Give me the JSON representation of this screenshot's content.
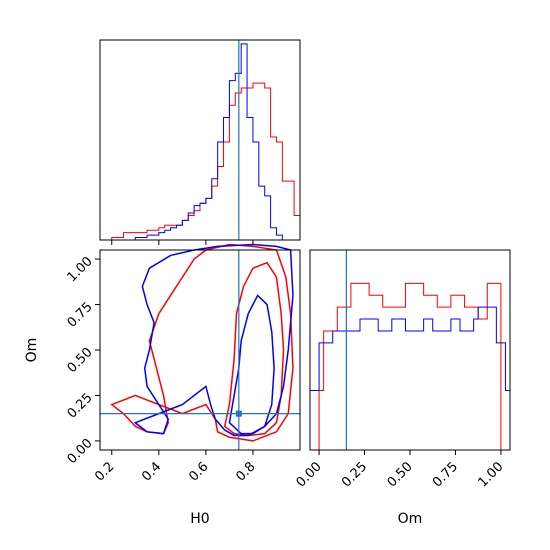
{
  "colors": {
    "red_series": "#ff0000",
    "blue_series": "#0000ff",
    "truth_line": "#1f77b4"
  },
  "chart_data": {
    "type": "corner",
    "parameters": [
      "H0",
      "Om"
    ],
    "truth": {
      "H0": 0.74,
      "Om": 0.15
    },
    "ticks": {
      "H0": [
        "0.2",
        "0.4",
        "0.6",
        "0.8"
      ],
      "Om": [
        "0.00",
        "0.25",
        "0.50",
        "0.75",
        "1.00"
      ]
    },
    "axis_labels": {
      "x_bottom_left": "H0",
      "x_bottom_right": "Om",
      "y_left": "Om"
    },
    "histograms": {
      "H0": {
        "range": [
          0.15,
          1.0
        ],
        "bin_edges": [
          0.2,
          0.25,
          0.3,
          0.35,
          0.4,
          0.425,
          0.45,
          0.475,
          0.5,
          0.525,
          0.55,
          0.575,
          0.6,
          0.625,
          0.65,
          0.675,
          0.7,
          0.725,
          0.75,
          0.775,
          0.8,
          0.825,
          0.85,
          0.875,
          0.9,
          0.925,
          0.95,
          0.975,
          1.0
        ],
        "red": [
          1,
          3,
          3,
          4,
          5,
          6,
          6,
          6,
          8,
          10,
          12,
          15,
          17,
          22,
          30,
          40,
          55,
          60,
          62,
          62,
          64,
          64,
          62,
          42,
          40,
          24,
          24,
          10
        ],
        "blue": [
          0,
          0,
          1,
          2,
          3,
          4,
          5,
          6,
          8,
          11,
          14,
          15,
          17,
          25,
          40,
          50,
          65,
          68,
          80,
          50,
          40,
          22,
          18,
          5,
          2,
          0,
          0,
          0
        ]
      },
      "Om": {
        "range": [
          -0.05,
          1.05
        ],
        "bin_edges": [
          -0.05,
          0.0,
          0.025,
          0.05,
          0.075,
          0.1,
          0.125,
          0.15,
          0.175,
          0.2,
          0.225,
          0.25,
          0.275,
          0.3,
          0.325,
          0.35,
          0.375,
          0.4,
          0.425,
          0.45,
          0.475,
          0.5,
          0.525,
          0.55,
          0.575,
          0.6,
          0.625,
          0.65,
          0.675,
          0.7,
          0.725,
          0.75,
          0.775,
          0.8,
          0.825,
          0.85,
          0.875,
          0.9,
          0.925,
          0.95,
          0.975,
          1.0,
          1.025,
          1.05
        ],
        "red": [
          0,
          5,
          10,
          10,
          10,
          12,
          12,
          12,
          14,
          14,
          14,
          14,
          13,
          13,
          13,
          12,
          12,
          12,
          12,
          12,
          14,
          14,
          14,
          14,
          13,
          13,
          13,
          12,
          12,
          12,
          13,
          13,
          13,
          12,
          12,
          12,
          11,
          11,
          14,
          14,
          14,
          0,
          0
        ],
        "blue": [
          5,
          9,
          9,
          9,
          10,
          10,
          10,
          10,
          10,
          10,
          11,
          11,
          11,
          11,
          10,
          10,
          10,
          11,
          11,
          11,
          10,
          10,
          10,
          10,
          11,
          11,
          10,
          10,
          10,
          10,
          11,
          11,
          10,
          10,
          10,
          11,
          12,
          12,
          12,
          12,
          9,
          9,
          5
        ]
      }
    },
    "contours": {
      "red": [
        [
          [
            0.2,
            0.2
          ],
          [
            0.25,
            0.15
          ],
          [
            0.3,
            0.08
          ],
          [
            0.35,
            0.05
          ],
          [
            0.42,
            0.04
          ],
          [
            0.44,
            0.1
          ],
          [
            0.42,
            0.25
          ],
          [
            0.4,
            0.35
          ],
          [
            0.38,
            0.45
          ],
          [
            0.36,
            0.55
          ],
          [
            0.4,
            0.7
          ],
          [
            0.45,
            0.8
          ],
          [
            0.5,
            0.9
          ],
          [
            0.55,
            1.0
          ],
          [
            0.6,
            1.05
          ],
          [
            0.7,
            1.08
          ],
          [
            0.8,
            1.07
          ],
          [
            0.9,
            1.05
          ],
          [
            0.94,
            0.9
          ],
          [
            0.96,
            0.7
          ],
          [
            0.97,
            0.4
          ],
          [
            0.95,
            0.15
          ],
          [
            0.9,
            0.05
          ],
          [
            0.8,
            0.0
          ],
          [
            0.7,
            0.02
          ],
          [
            0.65,
            0.05
          ],
          [
            0.64,
            0.12
          ],
          [
            0.6,
            0.2
          ],
          [
            0.5,
            0.15
          ],
          [
            0.4,
            0.2
          ],
          [
            0.3,
            0.25
          ],
          [
            0.2,
            0.2
          ]
        ],
        [
          [
            0.68,
            0.08
          ],
          [
            0.7,
            0.2
          ],
          [
            0.72,
            0.45
          ],
          [
            0.73,
            0.7
          ],
          [
            0.76,
            0.85
          ],
          [
            0.8,
            0.95
          ],
          [
            0.86,
            0.98
          ],
          [
            0.9,
            0.9
          ],
          [
            0.92,
            0.7
          ],
          [
            0.93,
            0.5
          ],
          [
            0.92,
            0.25
          ],
          [
            0.9,
            0.1
          ],
          [
            0.85,
            0.04
          ],
          [
            0.78,
            0.03
          ],
          [
            0.72,
            0.04
          ],
          [
            0.68,
            0.08
          ]
        ]
      ],
      "blue": [
        [
          [
            0.3,
            0.1
          ],
          [
            0.35,
            0.05
          ],
          [
            0.42,
            0.04
          ],
          [
            0.44,
            0.12
          ],
          [
            0.4,
            0.2
          ],
          [
            0.35,
            0.3
          ],
          [
            0.34,
            0.4
          ],
          [
            0.36,
            0.5
          ],
          [
            0.38,
            0.65
          ],
          [
            0.35,
            0.75
          ],
          [
            0.33,
            0.85
          ],
          [
            0.36,
            0.95
          ],
          [
            0.45,
            1.02
          ],
          [
            0.55,
            1.05
          ],
          [
            0.65,
            1.07
          ],
          [
            0.8,
            1.08
          ],
          [
            0.9,
            1.07
          ],
          [
            0.96,
            1.05
          ],
          [
            0.97,
            0.8
          ],
          [
            0.95,
            0.5
          ],
          [
            0.93,
            0.3
          ],
          [
            0.9,
            0.15
          ],
          [
            0.85,
            0.08
          ],
          [
            0.78,
            0.03
          ],
          [
            0.72,
            0.03
          ],
          [
            0.68,
            0.06
          ],
          [
            0.64,
            0.12
          ],
          [
            0.62,
            0.2
          ],
          [
            0.6,
            0.3
          ],
          [
            0.5,
            0.2
          ],
          [
            0.4,
            0.15
          ],
          [
            0.3,
            0.1
          ]
        ],
        [
          [
            0.7,
            0.1
          ],
          [
            0.72,
            0.25
          ],
          [
            0.74,
            0.4
          ],
          [
            0.75,
            0.55
          ],
          [
            0.78,
            0.7
          ],
          [
            0.82,
            0.8
          ],
          [
            0.86,
            0.75
          ],
          [
            0.88,
            0.6
          ],
          [
            0.89,
            0.4
          ],
          [
            0.88,
            0.2
          ],
          [
            0.85,
            0.08
          ],
          [
            0.8,
            0.04
          ],
          [
            0.75,
            0.04
          ],
          [
            0.7,
            0.1
          ]
        ]
      ]
    }
  }
}
